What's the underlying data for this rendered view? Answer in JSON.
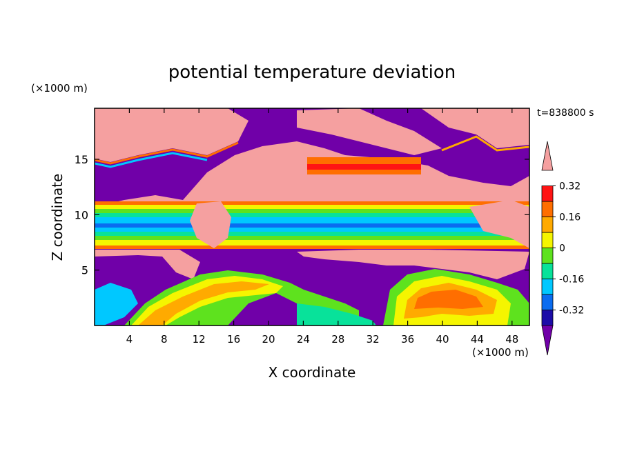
{
  "chart_data": {
    "type": "heatmap",
    "title": "potential temperature deviation",
    "time_label": "t=838800 s",
    "xlabel": "X coordinate",
    "ylabel": "Z coordinate",
    "x_unit": "(×1000 m)",
    "y_unit": "(×1000 m)",
    "xlim": [
      0,
      50
    ],
    "ylim": [
      0,
      19.6
    ],
    "x_ticks": [
      4,
      8,
      12,
      16,
      20,
      24,
      28,
      32,
      36,
      40,
      44,
      48
    ],
    "y_ticks": [
      5,
      10,
      15
    ],
    "colorbar": {
      "levels": [
        -0.4,
        -0.32,
        -0.24,
        -0.16,
        -0.08,
        0,
        0.08,
        0.16,
        0.24,
        0.32,
        0.4
      ],
      "labels": [
        "0.32",
        "0.16",
        "0",
        "-0.16",
        "-0.32"
      ],
      "label_values": [
        0.32,
        0.16,
        0,
        -0.16,
        -0.32
      ],
      "colors": [
        "#1c0ca8",
        "#0a6cf0",
        "#00c8ff",
        "#08e29a",
        "#5ee21e",
        "#f5f500",
        "#ffaa00",
        "#ff6e00",
        "#ff1414"
      ],
      "over_color": "#f5a0a0",
      "under_color": "#7000a8"
    }
  }
}
